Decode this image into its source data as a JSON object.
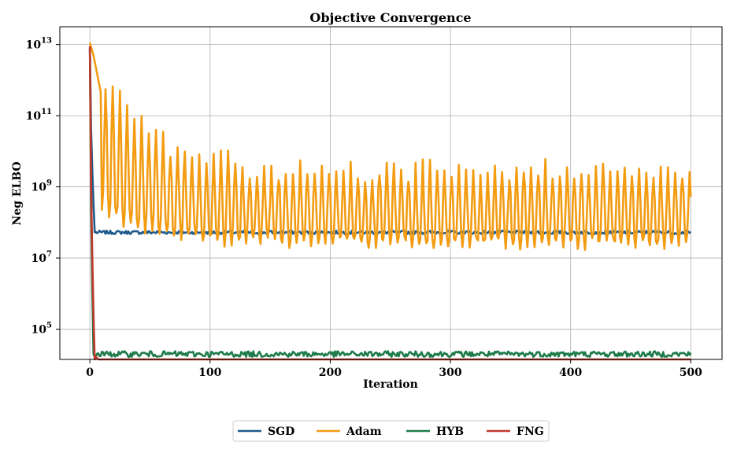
{
  "chart_data": {
    "type": "line",
    "title": "Objective Convergence",
    "xlabel": "Iteration",
    "ylabel": "Neg ELBO",
    "xlim": [
      -25,
      526
    ],
    "ylim_log10": [
      4.15,
      13.5
    ],
    "yscale": "log",
    "grid": true,
    "legend_position": "bottom-center",
    "x_ticks": [
      {
        "value": 0,
        "label": "0"
      },
      {
        "value": 100,
        "label": "100"
      },
      {
        "value": 200,
        "label": "200"
      },
      {
        "value": 300,
        "label": "300"
      },
      {
        "value": 400,
        "label": "400"
      },
      {
        "value": 500,
        "label": "500"
      }
    ],
    "y_ticks": [
      {
        "exp": 5,
        "base": "10",
        "sup": "5"
      },
      {
        "exp": 7,
        "base": "10",
        "sup": "7"
      },
      {
        "exp": 9,
        "base": "10",
        "sup": "9"
      },
      {
        "exp": 11,
        "base": "10",
        "sup": "11"
      },
      {
        "exp": 13,
        "base": "10",
        "sup": "13"
      }
    ],
    "iterations": 500,
    "series": [
      {
        "name": "SGD",
        "color": "#1f5a8a",
        "log10_start": 12.85,
        "log10_plateau": 7.72,
        "fall_iterations": 4,
        "noise": 0.012
      },
      {
        "name": "Adam",
        "color": "#f39c12",
        "log10_start": 13.05,
        "log10_floor": 7.4,
        "log10_peak_late": 9.4,
        "log10_peak_early": 12.2,
        "oscillation_period": 6
      },
      {
        "name": "HYB",
        "color": "#1e7b4a",
        "log10_start": 12.9,
        "log10_plateau": 4.3,
        "fall_iterations": 3,
        "noise": 0.02
      },
      {
        "name": "FNG",
        "color": "#c0392b",
        "log10_start": 12.95,
        "log10_plateau": 3.98,
        "fall_iterations": 4,
        "noise": 0.025
      }
    ]
  }
}
